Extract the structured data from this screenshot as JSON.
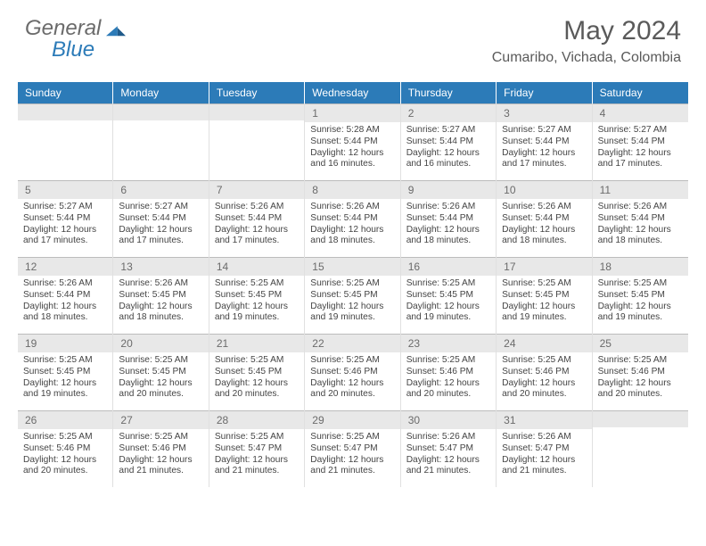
{
  "logo": {
    "general": "General",
    "blue": "Blue"
  },
  "title": "May 2024",
  "location": "Cumaribo, Vichada, Colombia",
  "colors": {
    "header_bg": "#2c7bb8",
    "header_text": "#ffffff",
    "daynum_bg": "#e8e8e8",
    "border": "#bcbcbc",
    "cell_border": "#e0e0e0",
    "body_text": "#444444",
    "title_text": "#5a5a5a"
  },
  "layout": {
    "columns": 7,
    "rows": 5,
    "title_fontsize": 30,
    "location_fontsize": 16,
    "dow_fontsize": 12,
    "daynum_fontsize": 12,
    "body_fontsize": 10.2
  },
  "day_names": [
    "Sunday",
    "Monday",
    "Tuesday",
    "Wednesday",
    "Thursday",
    "Friday",
    "Saturday"
  ],
  "weeks": [
    [
      {
        "n": "",
        "sunrise": "",
        "sunset": "",
        "daylight": ""
      },
      {
        "n": "",
        "sunrise": "",
        "sunset": "",
        "daylight": ""
      },
      {
        "n": "",
        "sunrise": "",
        "sunset": "",
        "daylight": ""
      },
      {
        "n": "1",
        "sunrise": "Sunrise: 5:28 AM",
        "sunset": "Sunset: 5:44 PM",
        "daylight": "Daylight: 12 hours and 16 minutes."
      },
      {
        "n": "2",
        "sunrise": "Sunrise: 5:27 AM",
        "sunset": "Sunset: 5:44 PM",
        "daylight": "Daylight: 12 hours and 16 minutes."
      },
      {
        "n": "3",
        "sunrise": "Sunrise: 5:27 AM",
        "sunset": "Sunset: 5:44 PM",
        "daylight": "Daylight: 12 hours and 17 minutes."
      },
      {
        "n": "4",
        "sunrise": "Sunrise: 5:27 AM",
        "sunset": "Sunset: 5:44 PM",
        "daylight": "Daylight: 12 hours and 17 minutes."
      }
    ],
    [
      {
        "n": "5",
        "sunrise": "Sunrise: 5:27 AM",
        "sunset": "Sunset: 5:44 PM",
        "daylight": "Daylight: 12 hours and 17 minutes."
      },
      {
        "n": "6",
        "sunrise": "Sunrise: 5:27 AM",
        "sunset": "Sunset: 5:44 PM",
        "daylight": "Daylight: 12 hours and 17 minutes."
      },
      {
        "n": "7",
        "sunrise": "Sunrise: 5:26 AM",
        "sunset": "Sunset: 5:44 PM",
        "daylight": "Daylight: 12 hours and 17 minutes."
      },
      {
        "n": "8",
        "sunrise": "Sunrise: 5:26 AM",
        "sunset": "Sunset: 5:44 PM",
        "daylight": "Daylight: 12 hours and 18 minutes."
      },
      {
        "n": "9",
        "sunrise": "Sunrise: 5:26 AM",
        "sunset": "Sunset: 5:44 PM",
        "daylight": "Daylight: 12 hours and 18 minutes."
      },
      {
        "n": "10",
        "sunrise": "Sunrise: 5:26 AM",
        "sunset": "Sunset: 5:44 PM",
        "daylight": "Daylight: 12 hours and 18 minutes."
      },
      {
        "n": "11",
        "sunrise": "Sunrise: 5:26 AM",
        "sunset": "Sunset: 5:44 PM",
        "daylight": "Daylight: 12 hours and 18 minutes."
      }
    ],
    [
      {
        "n": "12",
        "sunrise": "Sunrise: 5:26 AM",
        "sunset": "Sunset: 5:44 PM",
        "daylight": "Daylight: 12 hours and 18 minutes."
      },
      {
        "n": "13",
        "sunrise": "Sunrise: 5:26 AM",
        "sunset": "Sunset: 5:45 PM",
        "daylight": "Daylight: 12 hours and 18 minutes."
      },
      {
        "n": "14",
        "sunrise": "Sunrise: 5:25 AM",
        "sunset": "Sunset: 5:45 PM",
        "daylight": "Daylight: 12 hours and 19 minutes."
      },
      {
        "n": "15",
        "sunrise": "Sunrise: 5:25 AM",
        "sunset": "Sunset: 5:45 PM",
        "daylight": "Daylight: 12 hours and 19 minutes."
      },
      {
        "n": "16",
        "sunrise": "Sunrise: 5:25 AM",
        "sunset": "Sunset: 5:45 PM",
        "daylight": "Daylight: 12 hours and 19 minutes."
      },
      {
        "n": "17",
        "sunrise": "Sunrise: 5:25 AM",
        "sunset": "Sunset: 5:45 PM",
        "daylight": "Daylight: 12 hours and 19 minutes."
      },
      {
        "n": "18",
        "sunrise": "Sunrise: 5:25 AM",
        "sunset": "Sunset: 5:45 PM",
        "daylight": "Daylight: 12 hours and 19 minutes."
      }
    ],
    [
      {
        "n": "19",
        "sunrise": "Sunrise: 5:25 AM",
        "sunset": "Sunset: 5:45 PM",
        "daylight": "Daylight: 12 hours and 19 minutes."
      },
      {
        "n": "20",
        "sunrise": "Sunrise: 5:25 AM",
        "sunset": "Sunset: 5:45 PM",
        "daylight": "Daylight: 12 hours and 20 minutes."
      },
      {
        "n": "21",
        "sunrise": "Sunrise: 5:25 AM",
        "sunset": "Sunset: 5:45 PM",
        "daylight": "Daylight: 12 hours and 20 minutes."
      },
      {
        "n": "22",
        "sunrise": "Sunrise: 5:25 AM",
        "sunset": "Sunset: 5:46 PM",
        "daylight": "Daylight: 12 hours and 20 minutes."
      },
      {
        "n": "23",
        "sunrise": "Sunrise: 5:25 AM",
        "sunset": "Sunset: 5:46 PM",
        "daylight": "Daylight: 12 hours and 20 minutes."
      },
      {
        "n": "24",
        "sunrise": "Sunrise: 5:25 AM",
        "sunset": "Sunset: 5:46 PM",
        "daylight": "Daylight: 12 hours and 20 minutes."
      },
      {
        "n": "25",
        "sunrise": "Sunrise: 5:25 AM",
        "sunset": "Sunset: 5:46 PM",
        "daylight": "Daylight: 12 hours and 20 minutes."
      }
    ],
    [
      {
        "n": "26",
        "sunrise": "Sunrise: 5:25 AM",
        "sunset": "Sunset: 5:46 PM",
        "daylight": "Daylight: 12 hours and 20 minutes."
      },
      {
        "n": "27",
        "sunrise": "Sunrise: 5:25 AM",
        "sunset": "Sunset: 5:46 PM",
        "daylight": "Daylight: 12 hours and 21 minutes."
      },
      {
        "n": "28",
        "sunrise": "Sunrise: 5:25 AM",
        "sunset": "Sunset: 5:47 PM",
        "daylight": "Daylight: 12 hours and 21 minutes."
      },
      {
        "n": "29",
        "sunrise": "Sunrise: 5:25 AM",
        "sunset": "Sunset: 5:47 PM",
        "daylight": "Daylight: 12 hours and 21 minutes."
      },
      {
        "n": "30",
        "sunrise": "Sunrise: 5:26 AM",
        "sunset": "Sunset: 5:47 PM",
        "daylight": "Daylight: 12 hours and 21 minutes."
      },
      {
        "n": "31",
        "sunrise": "Sunrise: 5:26 AM",
        "sunset": "Sunset: 5:47 PM",
        "daylight": "Daylight: 12 hours and 21 minutes."
      },
      {
        "n": "",
        "sunrise": "",
        "sunset": "",
        "daylight": ""
      }
    ]
  ]
}
